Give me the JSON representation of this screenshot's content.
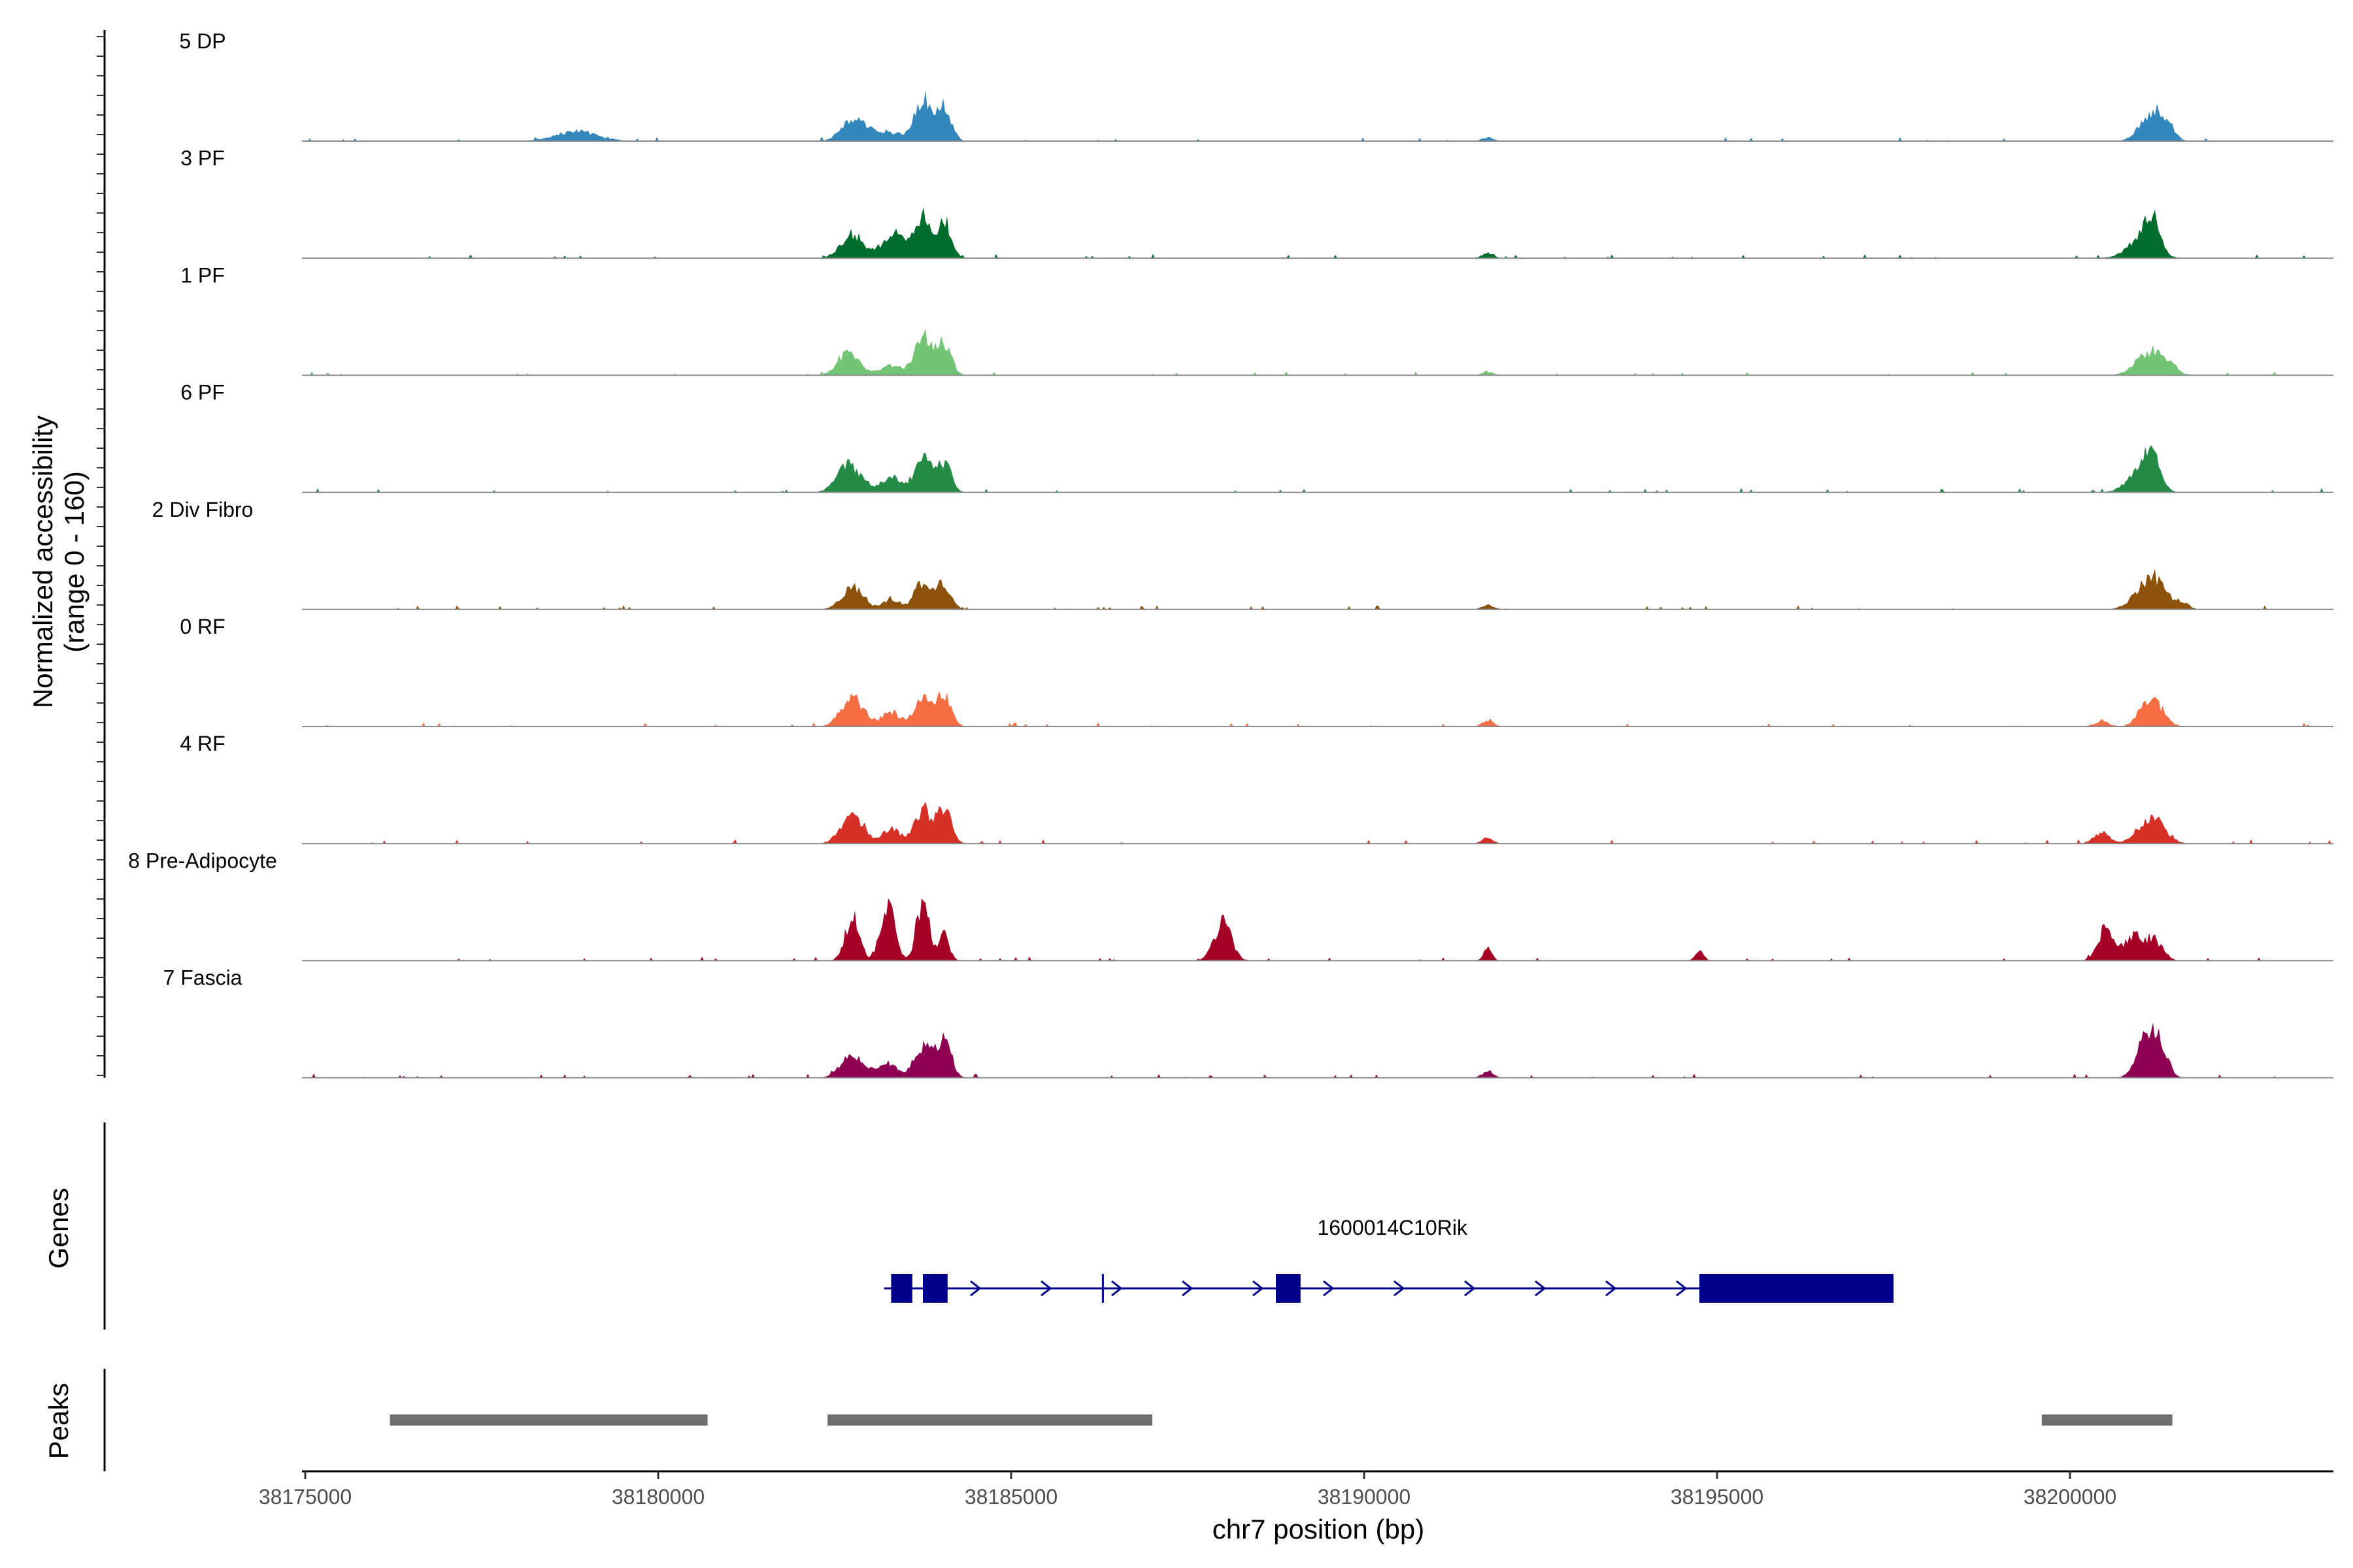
{
  "chart_data": {
    "type": "area",
    "title": "",
    "ylabel": "Normalized accessibility\n(range 0 - 160)",
    "ylabel_lines": [
      "Normalized accessibility",
      "(range 0 - 160)"
    ],
    "ylim": [
      0,
      160
    ],
    "xlabel": "chr7 position (bp)",
    "xlim": [
      38175000,
      38203900
    ],
    "x_ticks": [
      38175000,
      38180000,
      38185000,
      38190000,
      38195000,
      38200000
    ],
    "x_tick_labels": [
      "38175000",
      "38180000",
      "38185000",
      "38190000",
      "38195000",
      "38200000"
    ],
    "tracks": [
      {
        "name": "5 DP",
        "color": "#3288bd",
        "peaks": [
          [
            38178850,
            20,
            300
          ],
          [
            38182750,
            40,
            160
          ],
          [
            38183200,
            20,
            250
          ],
          [
            38183750,
            85,
            110
          ],
          [
            38184050,
            70,
            100
          ],
          [
            38191750,
            7,
            80
          ],
          [
            38201150,
            55,
            160
          ],
          [
            38201350,
            25,
            120
          ]
        ]
      },
      {
        "name": "3 PF",
        "color": "#006d2c",
        "peaks": [
          [
            38182750,
            50,
            160
          ],
          [
            38183250,
            30,
            130
          ],
          [
            38183500,
            35,
            150
          ],
          [
            38183750,
            75,
            110
          ],
          [
            38184050,
            75,
            100
          ],
          [
            38191750,
            10,
            80
          ],
          [
            38201000,
            35,
            200
          ],
          [
            38201150,
            70,
            110
          ]
        ]
      },
      {
        "name": "1 PF",
        "color": "#74c476",
        "peaks": [
          [
            38182700,
            45,
            150
          ],
          [
            38183300,
            20,
            150
          ],
          [
            38183750,
            75,
            120
          ],
          [
            38184050,
            65,
            100
          ],
          [
            38191750,
            7,
            80
          ],
          [
            38201150,
            50,
            200
          ],
          [
            38201450,
            10,
            80
          ]
        ]
      },
      {
        "name": "6 PF",
        "color": "#238b45",
        "peaks": [
          [
            38182700,
            60,
            160
          ],
          [
            38183300,
            30,
            150
          ],
          [
            38183750,
            70,
            120
          ],
          [
            38184050,
            60,
            100
          ],
          [
            38201000,
            45,
            180
          ],
          [
            38201150,
            65,
            110
          ]
        ]
      },
      {
        "name": "2 Div Fibro",
        "color": "#8c510a",
        "peaks": [
          [
            38182750,
            45,
            150
          ],
          [
            38183300,
            20,
            120
          ],
          [
            38183750,
            55,
            120
          ],
          [
            38184050,
            50,
            100
          ],
          [
            38191750,
            10,
            80
          ],
          [
            38201150,
            65,
            200
          ],
          [
            38201600,
            12,
            80
          ]
        ]
      },
      {
        "name": "0 RF",
        "color": "#f46d43",
        "peaks": [
          [
            38182750,
            60,
            160
          ],
          [
            38183300,
            30,
            130
          ],
          [
            38183750,
            55,
            120
          ],
          [
            38184050,
            65,
            100
          ],
          [
            38191750,
            12,
            80
          ],
          [
            38200450,
            10,
            100
          ],
          [
            38201150,
            60,
            150
          ]
        ]
      },
      {
        "name": "4 RF",
        "color": "#d73027",
        "peaks": [
          [
            38182750,
            55,
            160
          ],
          [
            38183300,
            30,
            130
          ],
          [
            38183750,
            70,
            120
          ],
          [
            38184050,
            70,
            100
          ],
          [
            38191750,
            12,
            80
          ],
          [
            38200450,
            20,
            120
          ],
          [
            38201150,
            55,
            180
          ]
        ]
      },
      {
        "name": "8 Pre-Adipocyte",
        "color": "#a50026",
        "peaks": [
          [
            38182750,
            90,
            100
          ],
          [
            38183250,
            115,
            100
          ],
          [
            38183750,
            120,
            90
          ],
          [
            38184050,
            60,
            70
          ],
          [
            38188000,
            80,
            120
          ],
          [
            38191750,
            25,
            60
          ],
          [
            38194750,
            18,
            60
          ],
          [
            38200500,
            65,
            110
          ],
          [
            38200900,
            50,
            140
          ],
          [
            38201200,
            40,
            120
          ]
        ]
      },
      {
        "name": "7 Fascia",
        "color": "#8e0152",
        "peaks": [
          [
            38182750,
            45,
            160
          ],
          [
            38183250,
            30,
            150
          ],
          [
            38183750,
            65,
            120
          ],
          [
            38184050,
            75,
            100
          ],
          [
            38191750,
            12,
            80
          ],
          [
            38201100,
            90,
            140
          ],
          [
            38201300,
            40,
            100
          ]
        ]
      }
    ],
    "gene_track": {
      "label": "Genes",
      "gene_name": "1600014C10Rik",
      "strand": "+",
      "start": 38183200,
      "end": 38197500,
      "exons": [
        [
          38183300,
          38183600
        ],
        [
          38183750,
          38184100
        ],
        [
          38188750,
          38189100
        ],
        [
          38194750,
          38197500
        ]
      ],
      "color": "#00008b"
    },
    "peak_track": {
      "label": "Peaks",
      "color": "#6e6e6e",
      "regions": [
        [
          38176200,
          38180700
        ],
        [
          38182400,
          38187000
        ],
        [
          38199600,
          38201450
        ]
      ]
    }
  }
}
